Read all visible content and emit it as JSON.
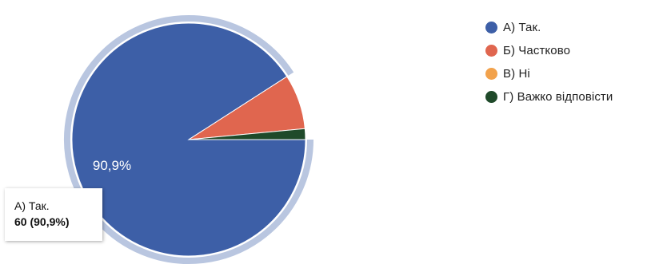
{
  "chart_data": {
    "type": "pie",
    "slices": [
      {
        "label": "А) Так.",
        "value": 90.9,
        "color": "#3d5fa7"
      },
      {
        "label": "Б) Частково",
        "value": 7.6,
        "color": "#e0664f"
      },
      {
        "label": "В) Ні",
        "value": 0,
        "color": "#f2a24c"
      },
      {
        "label": "Г) Важко відповісти",
        "value": 1.5,
        "color": "#1f4a2a"
      }
    ],
    "slice_labels": [
      "90,9%"
    ],
    "legend_position": "right"
  },
  "tooltip": {
    "label": "А) Так.",
    "value": "60 (90,9%)"
  }
}
